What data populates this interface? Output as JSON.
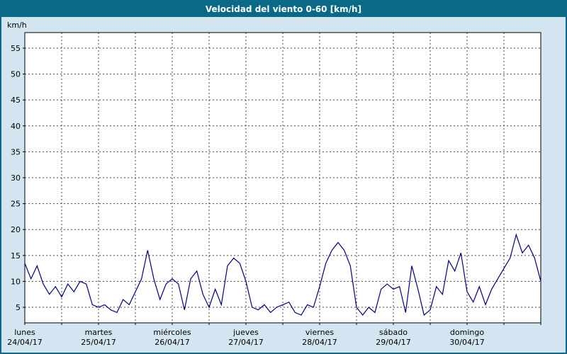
{
  "title_bar": {
    "title": "Velocidad del viento 0-60 [km/h]",
    "bg": "#0a6986",
    "fg": "#ffffff"
  },
  "chart_data": {
    "type": "line",
    "title": "Velocidad del viento 0-60 [km/h]",
    "ylabel": "km/h",
    "xlabel": "",
    "grid": true,
    "grid_style": "dashed",
    "legend": "none",
    "ylim": [
      2,
      58
    ],
    "y_ticks": [
      5,
      10,
      15,
      20,
      25,
      30,
      35,
      40,
      45,
      50,
      55
    ],
    "x_range_days": [
      0,
      7
    ],
    "points_per_day": 12,
    "x_days": [
      {
        "day": "lunes",
        "date": "24/04/17"
      },
      {
        "day": "martes",
        "date": "25/04/17"
      },
      {
        "day": "miércoles",
        "date": "26/04/17"
      },
      {
        "day": "jueves",
        "date": "27/04/17"
      },
      {
        "day": "viernes",
        "date": "28/04/17"
      },
      {
        "day": "sábado",
        "date": "29/04/17"
      },
      {
        "day": "domingo",
        "date": "30/04/17"
      }
    ],
    "series": [
      {
        "name": "Velocidad del viento (km/h)",
        "color": "#000080",
        "values": [
          13.5,
          10.5,
          13,
          9.5,
          7.5,
          9,
          7,
          9.5,
          8,
          10,
          9.5,
          5.5,
          5,
          5.5,
          4.5,
          4,
          6.5,
          5.5,
          8,
          10.5,
          16,
          10.5,
          6.5,
          9.5,
          10.5,
          9.5,
          4.5,
          10.5,
          12,
          7.5,
          5,
          8.5,
          5.5,
          13,
          14.5,
          13.5,
          10,
          5,
          4.5,
          5.5,
          4,
          5,
          5.5,
          6,
          4,
          3.5,
          5.5,
          5,
          9,
          13.5,
          16,
          17.5,
          16,
          13,
          5,
          3.5,
          5,
          4,
          8.5,
          9.5,
          8.5,
          9,
          4,
          13,
          8.5,
          3.5,
          4.5,
          9,
          7.5,
          14,
          12,
          15.5,
          8,
          6,
          9,
          5.5,
          8.5,
          10.5,
          12.5,
          14.5,
          19,
          15.5,
          17,
          14.5,
          10
        ]
      }
    ],
    "colors": {
      "background": "#d3e5f0",
      "plot_bg": "#ffffff",
      "grid": "#444444",
      "axis": "#000000",
      "line": "#000080",
      "border": "#0c6b89"
    }
  }
}
